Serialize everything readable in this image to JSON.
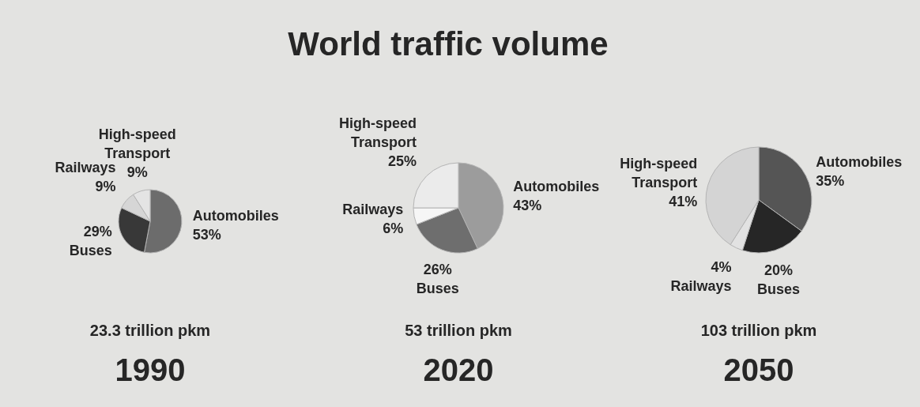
{
  "chart_data": [
    {
      "type": "other",
      "title": "World traffic volume"
    },
    {
      "type": "pie",
      "title": "1990",
      "subtitle": "23.3 trillion pkm",
      "categories": [
        "Automobiles",
        "Buses",
        "Railways",
        "High-speed Transport"
      ],
      "values": [
        53,
        29,
        9,
        9
      ],
      "value_labels": [
        "53%",
        "29%",
        "9%",
        "9%"
      ],
      "colors": [
        "#6c6c6c",
        "#383838",
        "#d6d6d6",
        "#e4e4e4"
      ]
    },
    {
      "type": "pie",
      "title": "2020",
      "subtitle": "53 trillion pkm",
      "categories": [
        "Automobiles",
        "Buses",
        "Railways",
        "High-speed Transport"
      ],
      "values": [
        43,
        26,
        6,
        25
      ],
      "value_labels": [
        "43%",
        "26%",
        "6%",
        "25%"
      ],
      "colors": [
        "#9c9c9c",
        "#6e6e6e",
        "#f6f6f6",
        "#ebebeb"
      ]
    },
    {
      "type": "pie",
      "title": "2050",
      "subtitle": "103 trillion pkm",
      "categories": [
        "Automobiles",
        "Buses",
        "Railways",
        "High-speed Transport"
      ],
      "values": [
        35,
        20,
        4,
        41
      ],
      "value_labels": [
        "35%",
        "20%",
        "4%",
        "41%"
      ],
      "colors": [
        "#555555",
        "#262626",
        "#e2e2e2",
        "#d4d4d4"
      ]
    }
  ]
}
